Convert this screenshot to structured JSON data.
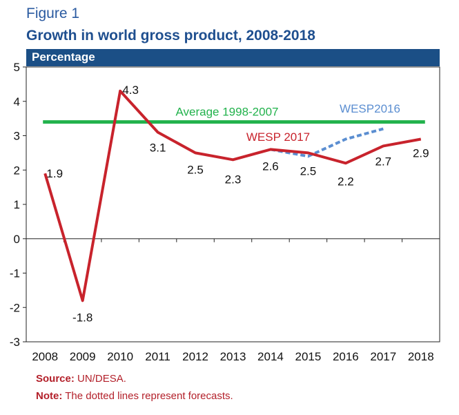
{
  "figure_label": "Figure 1",
  "title": "Growth in world gross product, 2008-2018",
  "header": "Percentage",
  "colors": {
    "accent": "#1b4f86",
    "wesp2017": "#c8232c",
    "wesp2016": "#5b8ed1",
    "average": "#22b24c"
  },
  "chart_data": {
    "type": "line",
    "title": "Growth in world gross product, 2008-2018",
    "ylabel": "Percentage",
    "xlabel": "",
    "ylim": [
      -3,
      5
    ],
    "y_ticks": [
      5,
      4,
      3,
      2,
      1,
      0,
      -1,
      -2,
      -3
    ],
    "x": [
      "2008",
      "2009",
      "2010",
      "2011",
      "2012",
      "2013",
      "2014",
      "2015",
      "2016",
      "2017",
      "2018"
    ],
    "grid": false,
    "series": [
      {
        "name": "WESP 2017",
        "color": "#c8232c",
        "values": [
          1.9,
          -1.8,
          4.3,
          3.1,
          2.5,
          2.3,
          2.6,
          2.5,
          2.2,
          2.7,
          2.9
        ],
        "labels": [
          "1.9",
          "-1.8",
          "4.3",
          "3.1",
          "2.5",
          "2.3",
          "2.6",
          "2.5",
          "2.2",
          "2.7",
          "2.9"
        ]
      },
      {
        "name": "WESP2016",
        "color": "#5b8ed1",
        "style": "dotted",
        "x": [
          "2014",
          "2015",
          "2016",
          "2017"
        ],
        "values": [
          2.6,
          2.4,
          2.9,
          3.2
        ]
      },
      {
        "name": "Average 1998-2007",
        "color": "#22b24c",
        "x_range": [
          "2008",
          "2018"
        ],
        "value": 3.4
      }
    ]
  },
  "footer": {
    "source_key": "Source:",
    "source_value": "UN/DESA.",
    "note_key": "Note:",
    "note_value": "The dotted lines represent forecasts."
  }
}
